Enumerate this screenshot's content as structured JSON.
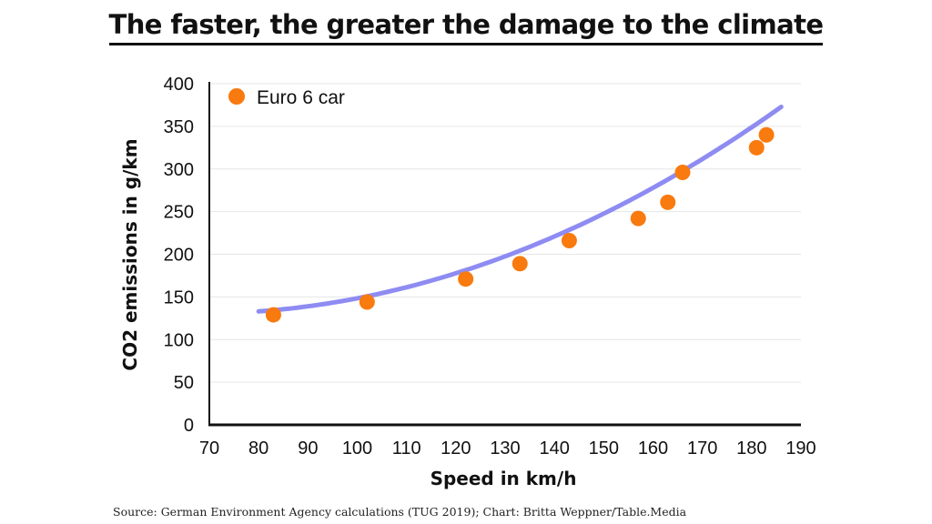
{
  "chart_data": {
    "type": "scatter",
    "title": "The faster, the greater the damage to the climate",
    "xlabel": "Speed in km/h",
    "ylabel": "CO2 emissions in g/km",
    "xlim": [
      70,
      190
    ],
    "ylim": [
      0,
      400
    ],
    "xticks": [
      "70",
      "80",
      "90",
      "100",
      "110",
      "120",
      "130",
      "140",
      "150",
      "160",
      "170",
      "180",
      "190"
    ],
    "yticks": [
      "0",
      "50",
      "100",
      "150",
      "200",
      "250",
      "300",
      "350",
      "400"
    ],
    "grid": "horizontal",
    "legend_position": "top-left",
    "series": [
      {
        "name": "Euro 6 car",
        "color": "#F97A0E",
        "x": [
          83,
          102,
          122,
          133,
          143,
          157,
          163,
          166,
          181,
          183
        ],
        "y": [
          129,
          144,
          171,
          189,
          216,
          242,
          261,
          296,
          325,
          340
        ]
      }
    ],
    "trendline": {
      "type": "polynomial",
      "color": "#8E8CF2",
      "x_range": [
        80,
        186
      ],
      "coefficients": [
        210,
        -2.35,
        0.01734
      ]
    }
  },
  "source": "Source: German Environment Agency calculations (TUG 2019); Chart: Britta Weppner/Table.Media"
}
